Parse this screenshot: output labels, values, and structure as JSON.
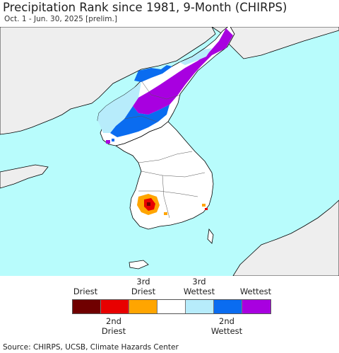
{
  "header": {
    "title": "Precipitation Rank since 1981, 9-Month (CHIRPS)",
    "subtitle": "Oct. 1 - Jun. 30, 2025 [prelim.]"
  },
  "map": {
    "colors": {
      "sea": "#b8fcfc",
      "land_other": "#eeeeee",
      "korea_normal": "#ffffff",
      "border": "#000000"
    }
  },
  "legend": {
    "top_labels": [
      "Driest",
      "3rd Driest",
      "3rd Wettest",
      "Wettest"
    ],
    "bottom_labels": [
      "2nd Driest",
      "2nd Wettest"
    ],
    "colors": [
      "#700000",
      "#e80000",
      "#ffa500",
      "#ffffff",
      "#b7ecfb",
      "#0a6cf0",
      "#a800e0"
    ]
  },
  "footer": {
    "source": "Source: CHIRPS, UCSB, Climate Hazards Center"
  }
}
